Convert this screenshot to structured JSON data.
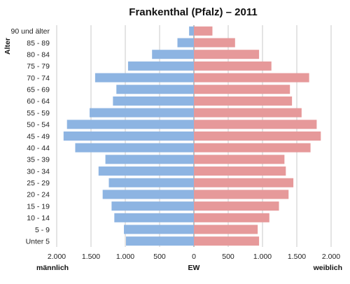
{
  "chart_data": {
    "type": "bar",
    "orientation": "horizontal",
    "subtype": "population-pyramid",
    "title": "Frankenthal (Pfalz) – 2011",
    "ylabel": "Alter",
    "xlabel_left": "männlich",
    "xlabel_center": "EW",
    "xlabel_right": "weiblich",
    "xlim": [
      -2000,
      2000
    ],
    "x_ticks": [
      -2000,
      -1500,
      -1000,
      -500,
      0,
      500,
      1000,
      1500,
      2000
    ],
    "x_tick_labels": [
      "2.000",
      "1.500",
      "1.000",
      "500",
      "0",
      "500",
      "1.000",
      "1.500",
      "2.000"
    ],
    "grid": true,
    "categories": [
      "90 und älter",
      "85 - 89",
      "80 - 84",
      "75 - 79",
      "70 - 74",
      "65 - 69",
      "60 - 64",
      "55 - 59",
      "50 - 54",
      "45 - 49",
      "40 - 44",
      "35 - 39",
      "30 - 34",
      "25 - 29",
      "20 - 24",
      "15 - 19",
      "10 - 14",
      "5 - 9",
      "Unter 5"
    ],
    "series": [
      {
        "side": "left",
        "color": "#8db4e2",
        "values": [
          70,
          240,
          610,
          960,
          1440,
          1130,
          1180,
          1520,
          1850,
          1900,
          1730,
          1290,
          1390,
          1240,
          1330,
          1200,
          1160,
          1020,
          990
        ]
      },
      {
        "side": "right",
        "color": "#e6999a",
        "values": [
          270,
          600,
          950,
          1130,
          1680,
          1400,
          1430,
          1570,
          1790,
          1850,
          1700,
          1320,
          1340,
          1450,
          1380,
          1240,
          1100,
          930,
          950
        ]
      }
    ]
  }
}
